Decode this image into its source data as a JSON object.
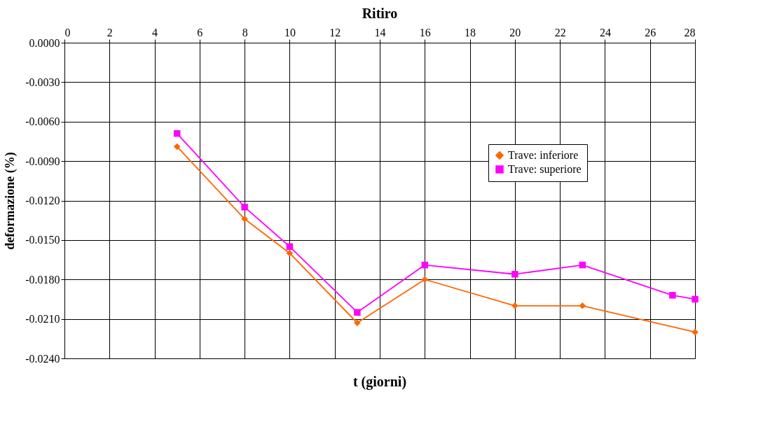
{
  "chart_data": {
    "type": "line",
    "title": "Ritiro",
    "xlabel": "t (giorni)",
    "ylabel": "deformazione (%)",
    "xlim": [
      0,
      28
    ],
    "xticks": [
      0,
      2,
      4,
      6,
      8,
      10,
      12,
      14,
      16,
      18,
      20,
      22,
      24,
      26,
      28
    ],
    "ylim": [
      -0.024,
      0
    ],
    "yticks": [
      {
        "value": -0.024,
        "label": "-0.0240"
      },
      {
        "value": -0.021,
        "label": "-0.0210"
      },
      {
        "value": -0.018,
        "label": "-0.0180"
      },
      {
        "value": -0.015,
        "label": "-0.0150"
      },
      {
        "value": -0.012,
        "label": "-0.0120"
      },
      {
        "value": -0.009,
        "label": "-0.0090"
      },
      {
        "value": -0.006,
        "label": "-0.0060"
      },
      {
        "value": -0.003,
        "label": "-0.0030"
      },
      {
        "value": 0,
        "label": "0.0000"
      }
    ],
    "grid": true,
    "legend": "right",
    "line_style": "solid",
    "series": [
      {
        "name": "Trave: inferiore",
        "color": "#ff6600",
        "marker": "diamond",
        "x": [
          5,
          8,
          10,
          13,
          16,
          20,
          23,
          28
        ],
        "values": [
          -0.0079,
          -0.0134,
          -0.016,
          -0.0213,
          -0.018,
          -0.02,
          -0.02,
          -0.022
        ]
      },
      {
        "name": "Trave: superiore",
        "color": "#ff00ff",
        "marker": "square",
        "x": [
          5,
          8,
          10,
          13,
          16,
          20,
          23,
          27,
          28
        ],
        "values": [
          -0.0069,
          -0.0125,
          -0.0155,
          -0.0205,
          -0.0169,
          -0.0176,
          -0.0169,
          -0.0192,
          -0.0195
        ]
      }
    ]
  }
}
